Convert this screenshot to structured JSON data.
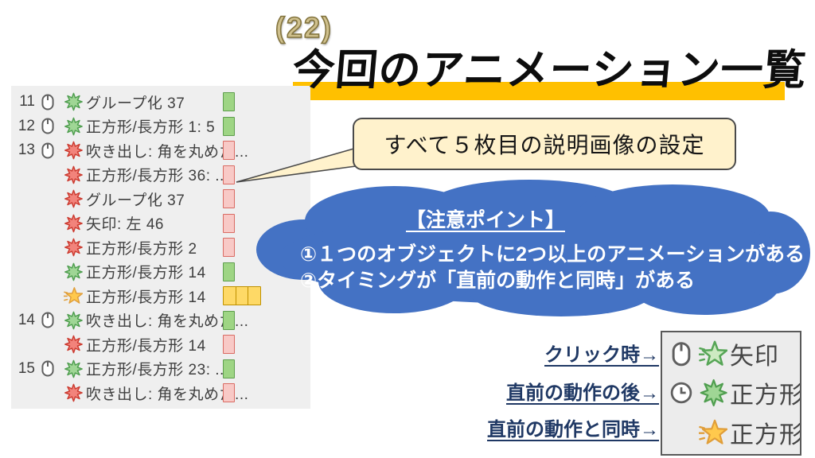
{
  "page": {
    "number_label": "(22)",
    "title": "今回のアニメーション一覧"
  },
  "callout": {
    "text": "すべて５枚目の説明画像の設定"
  },
  "note_cloud": {
    "heading": "【注意ポイント】",
    "points": [
      "①１つのオブジェクトに2つ以上のアニメーションがある",
      "②タイミングが「直前の動作と同時」がある"
    ]
  },
  "animation_pane": {
    "rows": [
      {
        "num": "11",
        "mouse": true,
        "star": "green-burst",
        "label": "グループ化 37",
        "bar": "green"
      },
      {
        "num": "12",
        "mouse": true,
        "star": "green-burst",
        "label": "正方形/長方形 1: 5",
        "bar": "green"
      },
      {
        "num": "13",
        "mouse": true,
        "star": "red-burst",
        "label": "吹き出し: 角を丸めた...",
        "bar": "pink"
      },
      {
        "num": "",
        "mouse": false,
        "star": "red-burst",
        "label": "正方形/長方形 36: ...",
        "bar": "pink"
      },
      {
        "num": "",
        "mouse": false,
        "star": "red-burst",
        "label": "グループ化 37",
        "bar": "pink"
      },
      {
        "num": "",
        "mouse": false,
        "star": "red-burst",
        "label": "矢印: 左 46",
        "bar": "pink"
      },
      {
        "num": "",
        "mouse": false,
        "star": "red-burst",
        "label": "正方形/長方形 2",
        "bar": "pink"
      },
      {
        "num": "",
        "mouse": false,
        "star": "green-burst",
        "label": "正方形/長方形 14",
        "bar": "green"
      },
      {
        "num": "",
        "mouse": false,
        "star": "gold-star",
        "label": "正方形/長方形 14",
        "bar": "yellow3"
      },
      {
        "num": "14",
        "mouse": true,
        "star": "green-burst",
        "label": "吹き出し: 角を丸めた...",
        "bar": "green"
      },
      {
        "num": "",
        "mouse": false,
        "star": "red-burst",
        "label": "正方形/長方形 14",
        "bar": "pink"
      },
      {
        "num": "15",
        "mouse": true,
        "star": "green-burst",
        "label": "正方形/長方形 23: ...",
        "bar": "green"
      },
      {
        "num": "",
        "mouse": false,
        "star": "red-burst",
        "label": "吹き出し: 角を丸めた...",
        "bar": "pink"
      }
    ]
  },
  "legend": {
    "labels": [
      {
        "text": "クリック時→"
      },
      {
        "text": "直前の動作の後→"
      },
      {
        "text": "直前の動作と同時→"
      }
    ],
    "box_rows": [
      {
        "timing_icon": "mouse",
        "star": "green-star",
        "label": "矢印"
      },
      {
        "timing_icon": "clock",
        "star": "green-burst",
        "label": "正方形"
      },
      {
        "timing_icon": "",
        "star": "gold-star",
        "label": "正方形"
      }
    ]
  },
  "colors": {
    "cloud_blue": "#4472C4",
    "title_highlight": "#FFC000",
    "callout_bg": "#FFF2CC",
    "pane_bg": "#EFEFEF",
    "bar_green": "#9ED584",
    "bar_pink": "#F8C9C6",
    "bar_yellow": "#FED966",
    "legend_label_navy": "#1F3864"
  }
}
